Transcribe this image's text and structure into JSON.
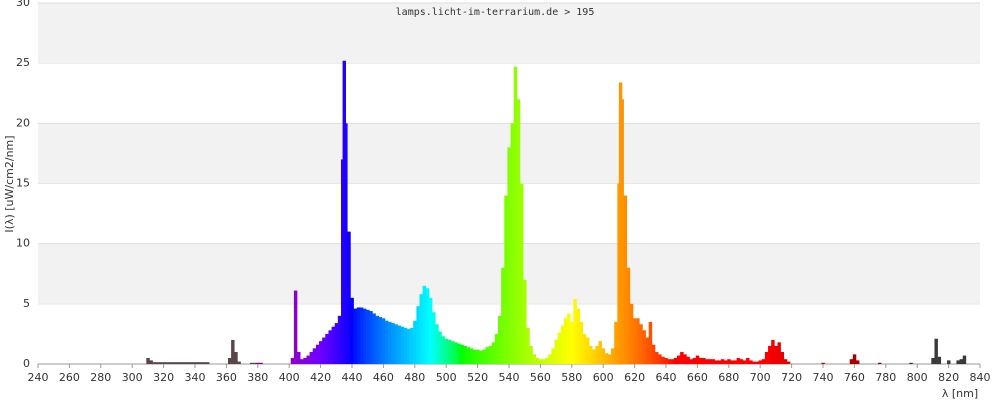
{
  "chart_data": {
    "type": "area",
    "title": "lamps.licht-im-terrarium.de > 195",
    "y_label": "I(λ)  [uW/cm2/nm]",
    "x_label": "λ [nm]",
    "xlim": [
      240,
      840
    ],
    "xticks": [
      240,
      260,
      280,
      300,
      320,
      340,
      360,
      380,
      400,
      420,
      440,
      460,
      480,
      500,
      520,
      540,
      560,
      580,
      600,
      620,
      640,
      660,
      680,
      700,
      720,
      740,
      760,
      780,
      800,
      820,
      840
    ],
    "ylim": [
      0,
      30
    ],
    "yticks": [
      0,
      5,
      10,
      15,
      20,
      25,
      30
    ],
    "grid": true,
    "x": [
      310,
      312,
      314,
      316,
      318,
      320,
      322,
      324,
      326,
      328,
      330,
      332,
      334,
      336,
      338,
      340,
      342,
      344,
      346,
      348,
      362,
      364,
      366,
      368,
      376,
      378,
      380,
      382,
      402,
      404,
      406,
      408,
      410,
      412,
      414,
      416,
      418,
      420,
      422,
      424,
      426,
      428,
      430,
      432,
      434,
      435,
      436,
      438,
      440,
      442,
      444,
      446,
      448,
      450,
      452,
      454,
      456,
      458,
      460,
      462,
      464,
      466,
      468,
      470,
      472,
      474,
      476,
      478,
      480,
      482,
      484,
      486,
      488,
      490,
      492,
      494,
      496,
      498,
      500,
      502,
      504,
      506,
      508,
      510,
      512,
      514,
      516,
      518,
      520,
      522,
      524,
      526,
      528,
      530,
      532,
      534,
      536,
      538,
      540,
      542,
      544,
      546,
      548,
      550,
      552,
      554,
      556,
      558,
      560,
      562,
      564,
      566,
      568,
      570,
      572,
      574,
      576,
      578,
      580,
      582,
      584,
      586,
      588,
      590,
      592,
      594,
      596,
      598,
      600,
      602,
      604,
      606,
      608,
      610,
      611,
      612,
      614,
      616,
      618,
      620,
      622,
      624,
      626,
      628,
      630,
      632,
      634,
      636,
      638,
      640,
      642,
      644,
      646,
      648,
      650,
      652,
      654,
      656,
      658,
      660,
      662,
      664,
      666,
      668,
      670,
      672,
      674,
      676,
      678,
      680,
      682,
      684,
      686,
      688,
      690,
      692,
      694,
      696,
      698,
      700,
      702,
      704,
      706,
      708,
      710,
      712,
      714,
      716,
      718,
      740,
      758,
      760,
      762,
      776,
      796,
      810,
      812,
      814,
      820,
      826,
      828,
      830
    ],
    "values": [
      0.5,
      0.3,
      0.15,
      0.15,
      0.15,
      0.15,
      0.15,
      0.15,
      0.15,
      0.15,
      0.15,
      0.15,
      0.15,
      0.15,
      0.15,
      0.15,
      0.15,
      0.15,
      0.15,
      0.15,
      0.5,
      2.0,
      1.0,
      0.2,
      0.1,
      0.1,
      0.1,
      0.1,
      0.5,
      6.1,
      1.0,
      0.4,
      0.5,
      0.7,
      1.0,
      1.3,
      1.6,
      1.9,
      2.2,
      2.5,
      2.8,
      3.1,
      3.4,
      4.0,
      17,
      25.2,
      20,
      11,
      5.5,
      4.6,
      4.7,
      4.7,
      4.6,
      4.5,
      4.4,
      4.2,
      4.0,
      3.9,
      3.8,
      3.6,
      3.5,
      3.4,
      3.3,
      3.2,
      3.1,
      3.0,
      2.9,
      3.0,
      3.6,
      4.8,
      5.8,
      6.5,
      6.3,
      5.5,
      4.3,
      3.3,
      2.7,
      2.3,
      2.1,
      2.0,
      1.9,
      1.8,
      1.7,
      1.6,
      1.5,
      1.4,
      1.3,
      1.2,
      1.2,
      1.1,
      1.2,
      1.4,
      1.5,
      1.8,
      2.5,
      4,
      8,
      14,
      18,
      20,
      24.7,
      22,
      15,
      7,
      3,
      1.5,
      0.8,
      0.5,
      0.4,
      0.4,
      0.5,
      0.8,
      1.3,
      2.0,
      2.6,
      3.2,
      3.8,
      4.2,
      3.5,
      5.4,
      4.6,
      3.5,
      2.5,
      2.2,
      1.5,
      1.2,
      1.5,
      1.9,
      1.3,
      0.9,
      0.8,
      1.3,
      3.5,
      15,
      23.4,
      22,
      14,
      8,
      5,
      3.8,
      3.8,
      3.3,
      2.8,
      2.2,
      3.5,
      1.6,
      1.0,
      0.8,
      0.6,
      0.5,
      0.4,
      0.4,
      0.5,
      0.7,
      1.0,
      0.8,
      0.6,
      0.4,
      0.5,
      0.7,
      0.5,
      0.5,
      0.4,
      0.4,
      0.4,
      0.3,
      0.3,
      0.4,
      0.3,
      0.4,
      0.3,
      0.3,
      0.5,
      0.4,
      0.3,
      0.5,
      0.3,
      0.2,
      0.2,
      0.3,
      0.4,
      1.0,
      1.5,
      2.0,
      1.5,
      1.8,
      1.0,
      0.4,
      0.2,
      0.1,
      0.4,
      0.8,
      0.3,
      0.1,
      0.1,
      0.5,
      2.1,
      0.6,
      0.3,
      0.3,
      0.4,
      0.7
    ]
  }
}
